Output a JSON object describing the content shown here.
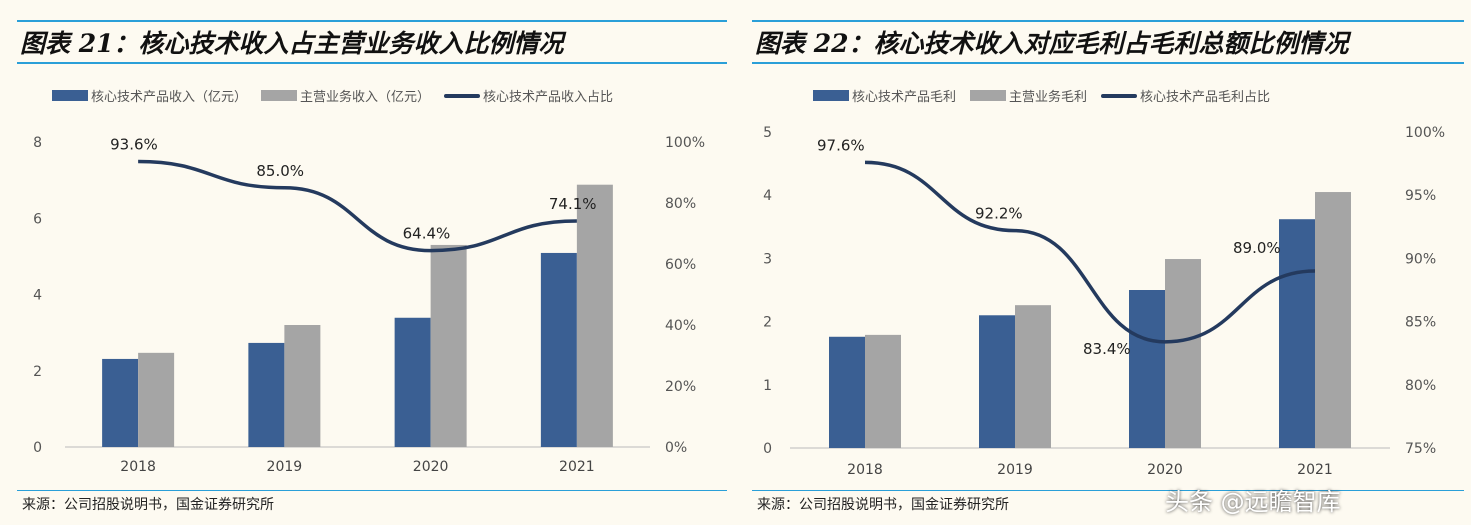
{
  "chart_data": [
    {
      "type": "bar",
      "title": "图表 21：核心技术收入占主营业务收入比例情况",
      "categories": [
        "2018",
        "2019",
        "2020",
        "2021"
      ],
      "series": [
        {
          "name": "核心技术产品收入（亿元）",
          "type": "bar",
          "axis": "left",
          "color": "#3a5f93",
          "values": [
            2.31,
            2.73,
            3.39,
            5.09
          ]
        },
        {
          "name": "主营业务收入（亿元）",
          "type": "bar",
          "axis": "left",
          "color": "#a5a5a5",
          "values": [
            2.47,
            3.2,
            5.3,
            6.88
          ]
        },
        {
          "name": "核心技术产品收入占比",
          "type": "line",
          "axis": "right",
          "color": "#243a5e",
          "values": [
            93.6,
            85.0,
            64.4,
            74.1
          ],
          "labels": [
            "93.6%",
            "85.0%",
            "64.4%",
            "74.1%"
          ]
        }
      ],
      "ylim": [
        0,
        8
      ],
      "yticks": [
        "0",
        "2",
        "4",
        "6",
        "8"
      ],
      "y2lim": [
        0,
        100
      ],
      "y2ticks": [
        "0%",
        "20%",
        "40%",
        "60%",
        "80%",
        "100%"
      ],
      "legend": "top",
      "source": "来源：公司招股说明书，国金证券研究所"
    },
    {
      "type": "bar",
      "title": "图表 22：核心技术收入对应毛利占毛利总额比例情况",
      "categories": [
        "2018",
        "2019",
        "2020",
        "2021"
      ],
      "series": [
        {
          "name": "核心技术产品毛利",
          "type": "bar",
          "axis": "left",
          "color": "#3a5f93",
          "values": [
            1.76,
            2.1,
            2.5,
            3.62
          ]
        },
        {
          "name": "主营业务毛利",
          "type": "bar",
          "axis": "left",
          "color": "#a5a5a5",
          "values": [
            1.79,
            2.26,
            2.99,
            4.05
          ]
        },
        {
          "name": "核心技术产品毛利占比",
          "type": "line",
          "axis": "right",
          "color": "#243a5e",
          "values": [
            97.6,
            92.2,
            83.4,
            89.0
          ],
          "labels": [
            "97.6%",
            "92.2%",
            "83.4%",
            "89.0%"
          ]
        }
      ],
      "ylim": [
        0,
        5
      ],
      "yticks": [
        "0",
        "1",
        "2",
        "3",
        "4",
        "5"
      ],
      "y2lim": [
        75,
        100
      ],
      "y2ticks": [
        "75%",
        "80%",
        "85%",
        "90%",
        "95%",
        "100%"
      ],
      "legend": "top",
      "source": "来源：公司招股说明书，国金证券研究所"
    }
  ],
  "watermark": "头条 @远瞻智库"
}
